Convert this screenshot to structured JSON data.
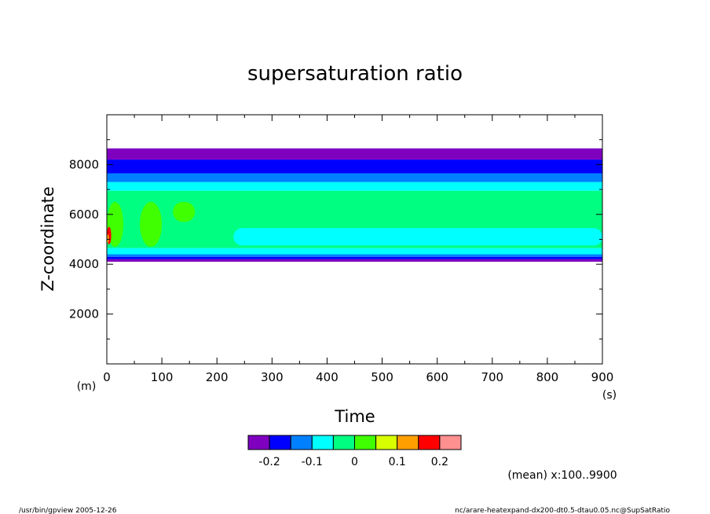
{
  "chart_data": {
    "type": "heatmap",
    "title": "supersaturation ratio",
    "xlabel": "Time",
    "ylabel": "Z-coordinate",
    "x_unit": "(s)",
    "y_unit": "(m)",
    "xlim": [
      0,
      900
    ],
    "ylim": [
      0,
      10000
    ],
    "x_ticks": [
      0,
      100,
      200,
      300,
      400,
      500,
      600,
      700,
      800,
      900
    ],
    "y_ticks": [
      2000,
      4000,
      6000,
      8000
    ],
    "grid": false,
    "colorbar": {
      "levels": [
        "-0.2",
        "-0.1",
        "0",
        "0.1",
        "0.2"
      ],
      "level_values": [
        -0.2,
        -0.1,
        0,
        0.1,
        0.2
      ],
      "colors": [
        "#8000c0",
        "#0000ff",
        "#0080ff",
        "#00ffff",
        "#00ff80",
        "#40ff00",
        "#d8ff00",
        "#ffa000",
        "#ff0000",
        "#ff9090"
      ],
      "class_ranges": [
        [
          -0.25,
          -0.2
        ],
        [
          -0.2,
          -0.15
        ],
        [
          -0.15,
          -0.1
        ],
        [
          -0.1,
          -0.05
        ],
        [
          -0.05,
          0
        ],
        [
          0,
          0.05
        ],
        [
          0.05,
          0.1
        ],
        [
          0.1,
          0.15
        ],
        [
          0.15,
          0.2
        ],
        [
          0.2,
          0.25
        ]
      ]
    },
    "bands": [
      {
        "z": [
          4100,
          4200
        ],
        "value": -0.225
      },
      {
        "z": [
          4200,
          4300
        ],
        "value": -0.175
      },
      {
        "z": [
          4300,
          4400
        ],
        "value": -0.125
      },
      {
        "z": [
          4400,
          4650
        ],
        "value": -0.075
      },
      {
        "z": [
          4650,
          6950
        ],
        "value": -0.025
      },
      {
        "z": [
          6950,
          7300
        ],
        "value": -0.075
      },
      {
        "z": [
          7300,
          7650
        ],
        "value": -0.125
      },
      {
        "z": [
          7650,
          8200
        ],
        "value": -0.175
      },
      {
        "z": [
          8200,
          8650
        ],
        "value": -0.225
      }
    ],
    "features": [
      {
        "x": [
          230,
          900
        ],
        "z": [
          4750,
          5450
        ],
        "value": -0.075
      },
      {
        "x": [
          0,
          30
        ],
        "z": [
          4700,
          6500
        ],
        "value": 0.025
      },
      {
        "x": [
          60,
          100
        ],
        "z": [
          4700,
          6500
        ],
        "value": 0.025
      },
      {
        "x": [
          120,
          160
        ],
        "z": [
          5700,
          6500
        ],
        "value": 0.025
      },
      {
        "x": [
          0,
          8
        ],
        "z": [
          4800,
          5500
        ],
        "value": 0.175
      },
      {
        "x": [
          0,
          4
        ],
        "z": [
          4850,
          5200
        ],
        "value": 0.125
      }
    ],
    "annotation": "(mean) x:100..9900"
  },
  "footer": {
    "left": "/usr/bin/gpview   2005-12-26",
    "right": "nc/arare-heatexpand-dx200-dt0.5-dtau0.05.nc@SupSatRatio"
  }
}
